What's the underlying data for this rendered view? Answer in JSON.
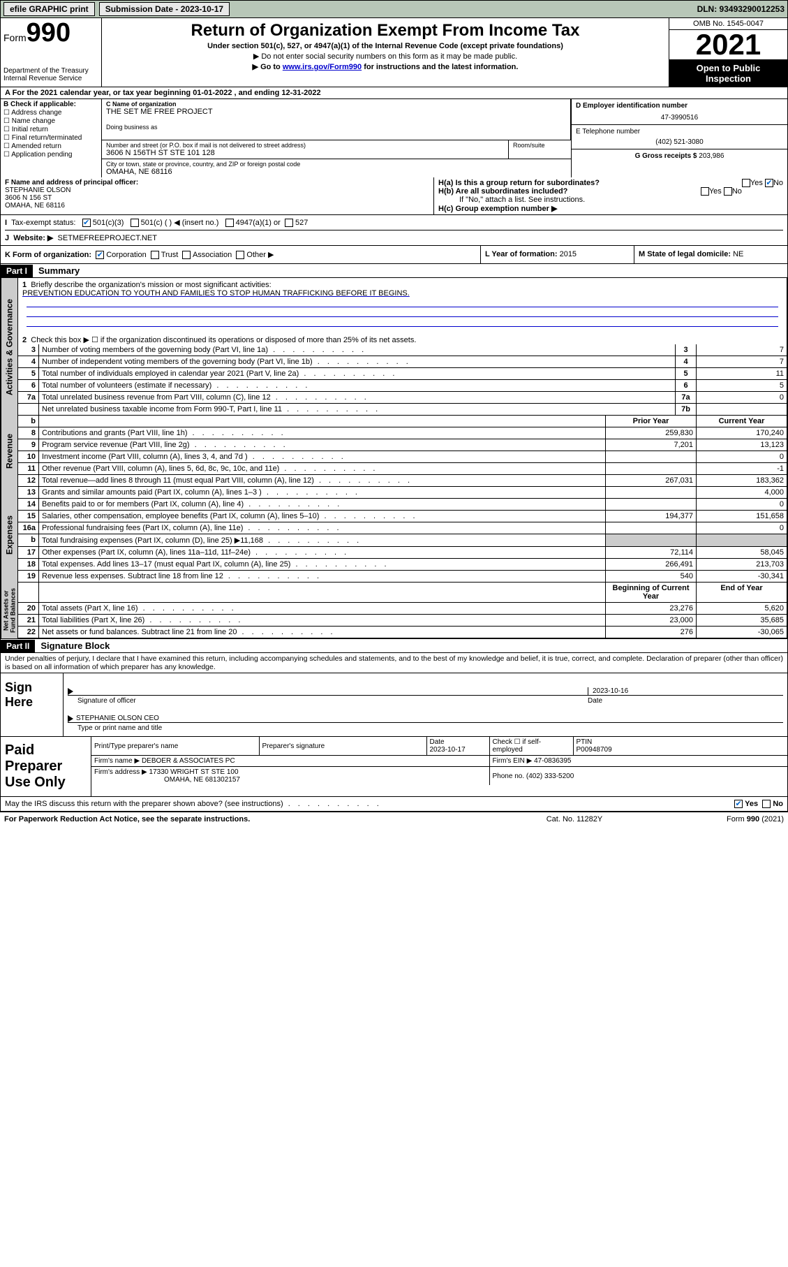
{
  "topbar": {
    "efile": "efile GRAPHIC print",
    "submission_label": "Submission Date - 2023-10-17",
    "dln": "DLN: 93493290012253"
  },
  "header": {
    "form_label": "Form",
    "form_number": "990",
    "dept": "Department of the Treasury",
    "irs": "Internal Revenue Service",
    "title": "Return of Organization Exempt From Income Tax",
    "subtitle": "Under section 501(c), 527, or 4947(a)(1) of the Internal Revenue Code (except private foundations)",
    "arrow1": "▶ Do not enter social security numbers on this form as it may be made public.",
    "arrow2_pre": "▶ Go to ",
    "arrow2_link": "www.irs.gov/Form990",
    "arrow2_post": " for instructions and the latest information.",
    "omb": "OMB No. 1545-0047",
    "year": "2021",
    "inspect1": "Open to Public",
    "inspect2": "Inspection"
  },
  "row_a": "A For the 2021 calendar year, or tax year beginning 01-01-2022   , and ending 12-31-2022",
  "col_b": {
    "head": "B Check if applicable:",
    "items": [
      "Address change",
      "Name change",
      "Initial return",
      "Final return/terminated",
      "Amended return",
      "Application pending"
    ]
  },
  "col_c": {
    "name_lbl": "C Name of organization",
    "name": "THE SET ME FREE PROJECT",
    "dba_lbl": "Doing business as",
    "addr_lbl": "Number and street (or P.O. box if mail is not delivered to street address)",
    "room_lbl": "Room/suite",
    "addr": "3606 N 156TH ST STE 101 128",
    "city_lbl": "City or town, state or province, country, and ZIP or foreign postal code",
    "city": "OMAHA, NE  68116"
  },
  "col_d": {
    "ein_lbl": "D Employer identification number",
    "ein": "47-3990516",
    "phone_lbl": "E Telephone number",
    "phone": "(402) 521-3080",
    "gross_lbl": "G Gross receipts $",
    "gross": "203,986"
  },
  "row_f": {
    "lbl": "F Name and address of principal officer:",
    "name": "STEPHANIE OLSON",
    "addr1": "3606 N 156 ST",
    "addr2": "OMAHA, NE  68116",
    "h4a": "H(a)  Is this a group return for subordinates?",
    "h4b": "H(b)  Are all subordinates included?",
    "h4b_note": "If \"No,\" attach a list. See instructions.",
    "h4c": "H(c)  Group exemption number ▶",
    "yes": "Yes",
    "no": "No"
  },
  "row_i": {
    "lbl": "Tax-exempt status:",
    "opt1": "501(c)(3)",
    "opt2": "501(c) (  ) ◀ (insert no.)",
    "opt3": "4947(a)(1) or",
    "opt4": "527"
  },
  "row_j": {
    "lbl": "Website: ▶",
    "val": "SETMEFREEPROJECT.NET"
  },
  "row_k": {
    "lbl": "K Form of organization:",
    "opts": [
      "Corporation",
      "Trust",
      "Association",
      "Other ▶"
    ],
    "l_lbl": "L Year of formation:",
    "l_val": "2015",
    "m_lbl": "M State of legal domicile:",
    "m_val": "NE"
  },
  "part1": {
    "hdr": "Part I",
    "title": "Summary",
    "line1_lbl": "1",
    "line1": "Briefly describe the organization's mission or most significant activities:",
    "mission": "PREVENTION EDUCATION TO YOUTH AND FAMILIES TO STOP HUMAN TRAFFICKING BEFORE IT BEGINS.",
    "line2_lbl": "2",
    "line2": "Check this box ▶ ☐  if the organization discontinued its operations or disposed of more than 25% of its net assets."
  },
  "gov_label": "Activities & Governance",
  "gov_rows": [
    {
      "n": "3",
      "d": "Number of voting members of the governing body (Part VI, line 1a)",
      "b": "3",
      "v": "7"
    },
    {
      "n": "4",
      "d": "Number of independent voting members of the governing body (Part VI, line 1b)",
      "b": "4",
      "v": "7"
    },
    {
      "n": "5",
      "d": "Total number of individuals employed in calendar year 2021 (Part V, line 2a)",
      "b": "5",
      "v": "11"
    },
    {
      "n": "6",
      "d": "Total number of volunteers (estimate if necessary)",
      "b": "6",
      "v": "5"
    },
    {
      "n": "7a",
      "d": "Total unrelated business revenue from Part VIII, column (C), line 12",
      "b": "7a",
      "v": "0"
    },
    {
      "n": "",
      "d": "Net unrelated business taxable income from Form 990-T, Part I, line 11",
      "b": "7b",
      "v": ""
    }
  ],
  "rev_label": "Revenue",
  "rev_hdr": {
    "n": "b",
    "py": "Prior Year",
    "cy": "Current Year"
  },
  "rev_rows": [
    {
      "n": "8",
      "d": "Contributions and grants (Part VIII, line 1h)",
      "py": "259,830",
      "cy": "170,240"
    },
    {
      "n": "9",
      "d": "Program service revenue (Part VIII, line 2g)",
      "py": "7,201",
      "cy": "13,123"
    },
    {
      "n": "10",
      "d": "Investment income (Part VIII, column (A), lines 3, 4, and 7d )",
      "py": "",
      "cy": "0"
    },
    {
      "n": "11",
      "d": "Other revenue (Part VIII, column (A), lines 5, 6d, 8c, 9c, 10c, and 11e)",
      "py": "",
      "cy": "-1"
    },
    {
      "n": "12",
      "d": "Total revenue—add lines 8 through 11 (must equal Part VIII, column (A), line 12)",
      "py": "267,031",
      "cy": "183,362"
    }
  ],
  "exp_label": "Expenses",
  "exp_rows": [
    {
      "n": "13",
      "d": "Grants and similar amounts paid (Part IX, column (A), lines 1–3 )",
      "py": "",
      "cy": "4,000"
    },
    {
      "n": "14",
      "d": "Benefits paid to or for members (Part IX, column (A), line 4)",
      "py": "",
      "cy": "0"
    },
    {
      "n": "15",
      "d": "Salaries, other compensation, employee benefits (Part IX, column (A), lines 5–10)",
      "py": "194,377",
      "cy": "151,658"
    },
    {
      "n": "16a",
      "d": "Professional fundraising fees (Part IX, column (A), line 11e)",
      "py": "",
      "cy": "0"
    },
    {
      "n": "b",
      "d": "Total fundraising expenses (Part IX, column (D), line 25) ▶11,168",
      "py": "GRAY",
      "cy": "GRAY"
    },
    {
      "n": "17",
      "d": "Other expenses (Part IX, column (A), lines 11a–11d, 11f–24e)",
      "py": "72,114",
      "cy": "58,045"
    },
    {
      "n": "18",
      "d": "Total expenses. Add lines 13–17 (must equal Part IX, column (A), line 25)",
      "py": "266,491",
      "cy": "213,703"
    },
    {
      "n": "19",
      "d": "Revenue less expenses. Subtract line 18 from line 12",
      "py": "540",
      "cy": "-30,341"
    }
  ],
  "net_label": "Net Assets or Fund Balances",
  "net_hdr": {
    "py": "Beginning of Current Year",
    "cy": "End of Year"
  },
  "net_rows": [
    {
      "n": "20",
      "d": "Total assets (Part X, line 16)",
      "py": "23,276",
      "cy": "5,620"
    },
    {
      "n": "21",
      "d": "Total liabilities (Part X, line 26)",
      "py": "23,000",
      "cy": "35,685"
    },
    {
      "n": "22",
      "d": "Net assets or fund balances. Subtract line 21 from line 20",
      "py": "276",
      "cy": "-30,065"
    }
  ],
  "part2": {
    "hdr": "Part II",
    "title": "Signature Block",
    "decl": "Under penalties of perjury, I declare that I have examined this return, including accompanying schedules and statements, and to the best of my knowledge and belief, it is true, correct, and complete. Declaration of preparer (other than officer) is based on all information of which preparer has any knowledge."
  },
  "sign": {
    "here": "Sign Here",
    "sig_lbl": "Signature of officer",
    "date_lbl": "Date",
    "date": "2023-10-16",
    "name": "STEPHANIE OLSON CEO",
    "name_lbl": "Type or print name and title"
  },
  "prep": {
    "title": "Paid Preparer Use Only",
    "h1": "Print/Type preparer's name",
    "h2": "Preparer's signature",
    "h3": "Date",
    "h3v": "2023-10-17",
    "h4": "Check ☐ if self-employed",
    "h5": "PTIN",
    "h5v": "P00948709",
    "firm_lbl": "Firm's name    ▶",
    "firm": "DEBOER & ASSOCIATES PC",
    "ein_lbl": "Firm's EIN ▶",
    "ein": "47-0836395",
    "addr_lbl": "Firm's address ▶",
    "addr1": "17330 WRIGHT ST STE 100",
    "addr2": "OMAHA, NE  681302157",
    "phone_lbl": "Phone no.",
    "phone": "(402) 333-5200",
    "discuss": "May the IRS discuss this return with the preparer shown above? (see instructions)",
    "yes": "Yes",
    "no": "No"
  },
  "footer": {
    "l": "For Paperwork Reduction Act Notice, see the separate instructions.",
    "m": "Cat. No. 11282Y",
    "r": "Form 990 (2021)"
  }
}
